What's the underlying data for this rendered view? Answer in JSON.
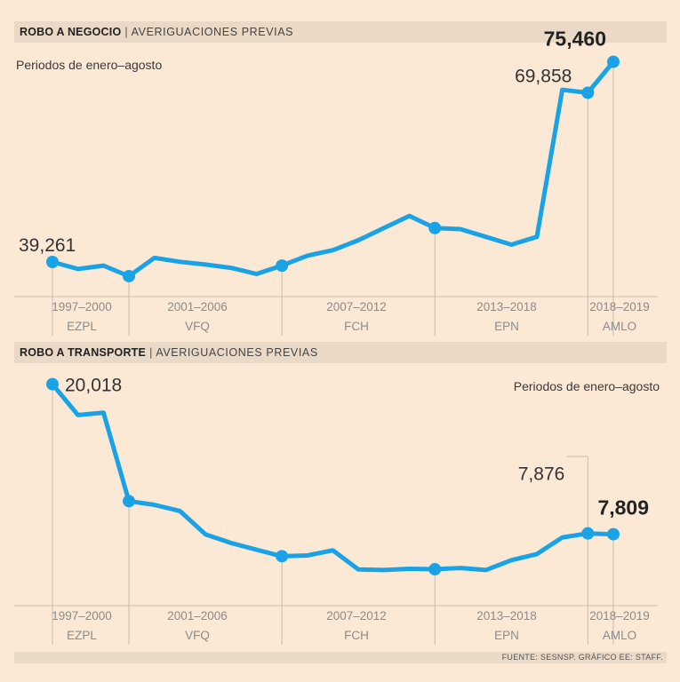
{
  "footer": "FUENTE: SESNSP. GRÁFICO EE: STAFF.",
  "chart_data": [
    {
      "type": "line",
      "title": "ROBO A NEGOCIO",
      "subtitle": "AVERIGUACIONES PREVIAS",
      "note": "Periodos de enero–agosto",
      "color": "#19a3e6",
      "x": [
        1997,
        1998,
        1999,
        2000,
        2001,
        2002,
        2003,
        2004,
        2005,
        2006,
        2007,
        2008,
        2009,
        2010,
        2011,
        2012,
        2013,
        2014,
        2015,
        2016,
        2017,
        2018,
        2019
      ],
      "values": [
        39261,
        38000,
        38600,
        36700,
        40000,
        39300,
        38800,
        38200,
        37100,
        38600,
        40400,
        41400,
        43200,
        45400,
        47600,
        45400,
        45200,
        43800,
        42400,
        43800,
        70400,
        69858,
        75460
      ],
      "ylim": [
        33000,
        77000
      ],
      "highlight_indices": [
        0,
        3,
        9,
        15,
        21,
        22
      ],
      "labels": [
        {
          "index": 0,
          "text": "39,261",
          "bold": false
        },
        {
          "index": 21,
          "text": "69,858",
          "bold": false
        },
        {
          "index": 22,
          "text": "75,460",
          "bold": true
        }
      ],
      "periods": [
        {
          "years": "1997–2000",
          "admin": "EZPL"
        },
        {
          "years": "2001–2006",
          "admin": "VFQ"
        },
        {
          "years": "2007–2012",
          "admin": "FCH"
        },
        {
          "years": "2013–2018",
          "admin": "EPN"
        },
        {
          "years": "2018–2019",
          "admin": "AMLO"
        }
      ]
    },
    {
      "type": "line",
      "title": "ROBO A TRANSPORTE",
      "subtitle": "AVERIGUACIONES PREVIAS",
      "note": "Periodos de enero–agosto",
      "color": "#19a3e6",
      "x": [
        1997,
        1998,
        1999,
        2000,
        2001,
        2002,
        2003,
        2004,
        2005,
        2006,
        2007,
        2008,
        2009,
        2010,
        2011,
        2012,
        2013,
        2014,
        2015,
        2016,
        2017,
        2018,
        2019
      ],
      "values": [
        20018,
        17500,
        17700,
        10500,
        10200,
        9700,
        7800,
        7100,
        6550,
        6020,
        6080,
        6500,
        4940,
        4900,
        5000,
        4960,
        5060,
        4900,
        5700,
        6200,
        7550,
        7876,
        7809
      ],
      "ylim": [
        2000,
        21000
      ],
      "highlight_indices": [
        0,
        3,
        9,
        15,
        21,
        22
      ],
      "labels": [
        {
          "index": 0,
          "text": "20,018",
          "bold": false
        },
        {
          "index": 21,
          "text": "7,876",
          "bold": false
        },
        {
          "index": 22,
          "text": "7,809",
          "bold": true
        }
      ],
      "periods": [
        {
          "years": "1997–2000",
          "admin": "EZPL"
        },
        {
          "years": "2001–2006",
          "admin": "VFQ"
        },
        {
          "years": "2007–2012",
          "admin": "FCH"
        },
        {
          "years": "2013–2018",
          "admin": "EPN"
        },
        {
          "years": "2018–2019",
          "admin": "AMLO"
        }
      ]
    }
  ]
}
